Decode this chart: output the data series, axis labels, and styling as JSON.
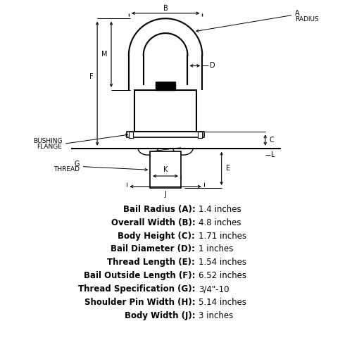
{
  "bg_color": "#ffffff",
  "line_color": "#000000",
  "text_color": "#000000",
  "specs": [
    {
      "label": "Bail Radius (A):",
      "value": "1.4 inches"
    },
    {
      "label": "Overall Width (B):",
      "value": "4.8 inches"
    },
    {
      "label": "Body Height (C):",
      "value": "1.71 inches"
    },
    {
      "label": "Bail Diameter (D):",
      "value": "1 inches"
    },
    {
      "label": "Thread Length (E):",
      "value": "1.54 inches"
    },
    {
      "label": "Bail Outside Length (F):",
      "value": "6.52 inches"
    },
    {
      "label": "Thread Specification (G):",
      "value": "3/4\"-10"
    },
    {
      "label": "Shoulder Pin Width (H):",
      "value": "5.14 inches"
    },
    {
      "label": "Body Width (J):",
      "value": "3 inches"
    }
  ]
}
